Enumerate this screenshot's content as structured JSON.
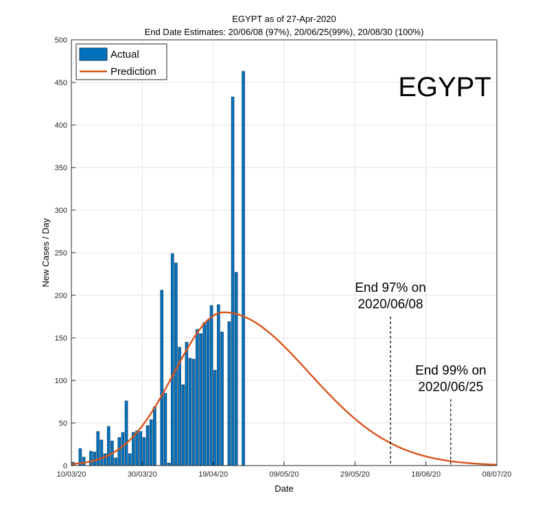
{
  "chart_data": {
    "type": "bar",
    "title": "EGYPT as of 27-Apr-2020",
    "subtitle": "End Date Estimates: 20/06/08 (97%), 20/06/25(99%), 20/08/30 (100%)",
    "xlabel": "Date",
    "ylabel": "New Cases / Day",
    "xlim": [
      "2020-03-10",
      "2020-07-08"
    ],
    "ylim": [
      0,
      500
    ],
    "x_ticks": [
      "10/03/20",
      "30/03/20",
      "19/04/20",
      "09/05/20",
      "29/05/20",
      "18/06/20",
      "08/07/20"
    ],
    "y_ticks": [
      0,
      50,
      100,
      150,
      200,
      250,
      300,
      350,
      400,
      450,
      500
    ],
    "grid": true,
    "legend_location": "top-left",
    "colors": {
      "actual": "#0072BD",
      "actual_edge": "#1a3a5a",
      "prediction": "#D95319",
      "axis": "#262626",
      "grid": "#e3e3e3"
    },
    "watermark": "EGYPT",
    "series": [
      {
        "name": "Actual",
        "kind": "bar",
        "dates": [
          "2020-03-10",
          "2020-03-11",
          "2020-03-12",
          "2020-03-13",
          "2020-03-14",
          "2020-03-15",
          "2020-03-16",
          "2020-03-17",
          "2020-03-18",
          "2020-03-19",
          "2020-03-20",
          "2020-03-21",
          "2020-03-22",
          "2020-03-23",
          "2020-03-24",
          "2020-03-25",
          "2020-03-26",
          "2020-03-27",
          "2020-03-28",
          "2020-03-29",
          "2020-03-30",
          "2020-03-31",
          "2020-04-01",
          "2020-04-02",
          "2020-04-03",
          "2020-04-04",
          "2020-04-05",
          "2020-04-06",
          "2020-04-07",
          "2020-04-08",
          "2020-04-09",
          "2020-04-10",
          "2020-04-11",
          "2020-04-12",
          "2020-04-13",
          "2020-04-14",
          "2020-04-15",
          "2020-04-16",
          "2020-04-17",
          "2020-04-18",
          "2020-04-19",
          "2020-04-20",
          "2020-04-21",
          "2020-04-22",
          "2020-04-23",
          "2020-04-24",
          "2020-04-25",
          "2020-04-26",
          "2020-04-27"
        ],
        "values": [
          4,
          0,
          20,
          10,
          0,
          17,
          16,
          40,
          30,
          14,
          46,
          29,
          9,
          33,
          39,
          76,
          14,
          39,
          41,
          40,
          33,
          47,
          54,
          69,
          0,
          206,
          85,
          3,
          249,
          238,
          139,
          95,
          145,
          126,
          125,
          160,
          155,
          168,
          171,
          188,
          112,
          189,
          157,
          0,
          169,
          433,
          227,
          0,
          463
        ]
      },
      {
        "name": "Prediction",
        "kind": "line",
        "peak_date": "2020-04-22",
        "peak_value": 180,
        "rise_width_days": 14,
        "decay_width_days": 24
      }
    ],
    "annotations": [
      {
        "lines": [
          "End 97% on",
          "2020/06/08"
        ],
        "date": "2020-06-08",
        "y_top": 175
      },
      {
        "lines": [
          "End 99% on",
          "2020/06/25"
        ],
        "date": "2020-06-25",
        "y_top": 78
      }
    ]
  }
}
